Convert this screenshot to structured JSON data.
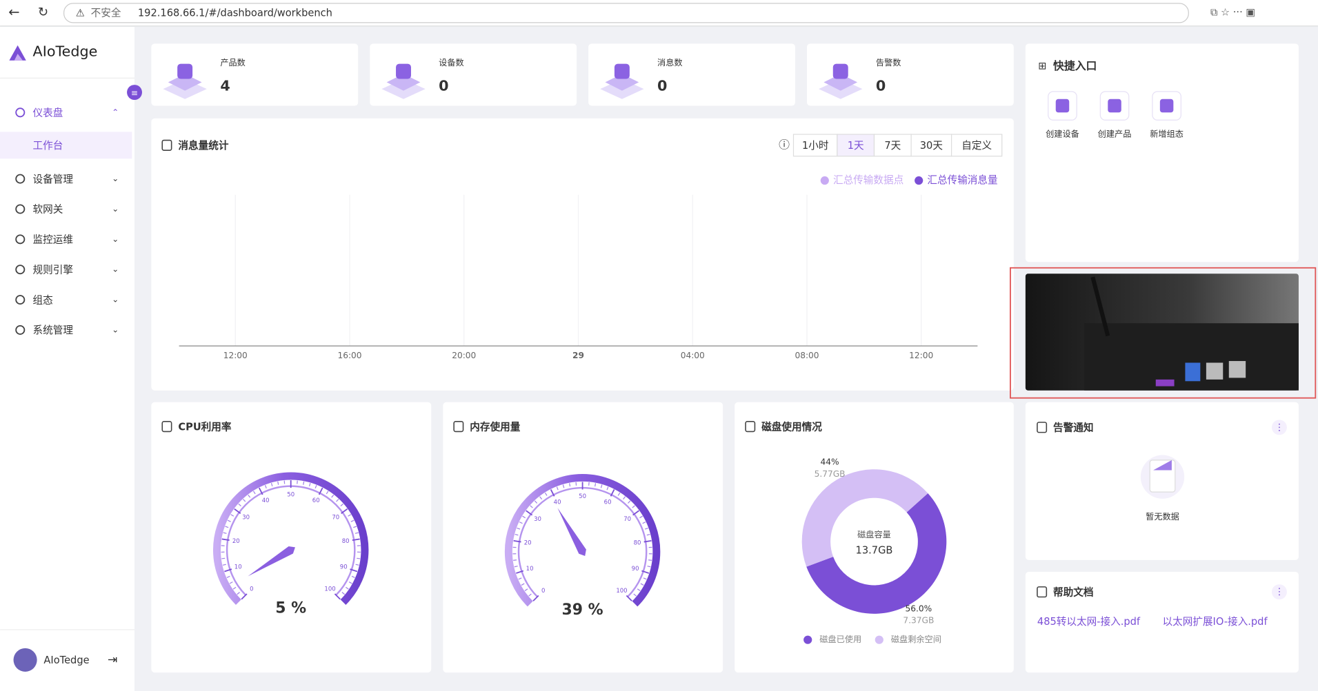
{
  "browser": {
    "security": "不安全",
    "url": "192.168.66.1/#/dashboard/workbench"
  },
  "sidebar": {
    "brand": "AIoTedge",
    "menu": [
      {
        "label": "仪表盘",
        "children": [
          "工作台"
        ]
      },
      {
        "label": "设备管理"
      },
      {
        "label": "软网关"
      },
      {
        "label": "监控运维"
      },
      {
        "label": "规则引擎"
      },
      {
        "label": "组态"
      },
      {
        "label": "系统管理"
      }
    ],
    "user": "AIoTedge"
  },
  "stats": [
    {
      "label": "产品数",
      "value": 4
    },
    {
      "label": "设备数",
      "value": 0
    },
    {
      "label": "消息数",
      "value": 0
    },
    {
      "label": "告警数",
      "value": 0
    }
  ],
  "message_chart": {
    "title": "消息量统计",
    "ranges": [
      "1小时",
      "1天",
      "7天",
      "30天",
      "自定义"
    ],
    "active_range": 1,
    "legend": [
      {
        "name": "汇总传输数据点",
        "color": "#c8aaf3"
      },
      {
        "name": "汇总传输消息量",
        "color": "#7b4fd6"
      }
    ],
    "x_ticks": [
      "12:00",
      "16:00",
      "20:00",
      "29",
      "04:00",
      "08:00",
      "12:00"
    ]
  },
  "quick_entry": {
    "title": "快捷入口",
    "items": [
      "创建设备",
      "创建产品",
      "新增组态"
    ]
  },
  "cpu": {
    "title": "CPU利用率",
    "value": 5,
    "value_label": "5 %",
    "ticks": [
      0,
      10,
      20,
      30,
      40,
      50,
      60,
      70,
      80,
      90,
      100
    ]
  },
  "memory": {
    "title": "内存使用量",
    "value": 39,
    "value_label": "39 %",
    "ticks": [
      0,
      10,
      20,
      30,
      40,
      50,
      60,
      70,
      80,
      90,
      100
    ]
  },
  "disk": {
    "title": "磁盘使用情况",
    "center_label": "磁盘容量",
    "total": "13.7GB",
    "slices": [
      {
        "name": "磁盘已使用",
        "value": 56,
        "value_label": "56.0%",
        "size": "7.37GB",
        "color": "#7b4fd6"
      },
      {
        "name": "磁盘剩余空间",
        "value": 44,
        "value_label": "44%",
        "size": "5.77GB",
        "color": "#d4bff5"
      }
    ]
  },
  "alarms": {
    "title": "告警通知",
    "empty": "暂无数据"
  },
  "help": {
    "title": "帮助文档",
    "links": [
      "485转以太网-接入.pdf",
      "以太网扩展IO-接入.pdf"
    ]
  }
}
